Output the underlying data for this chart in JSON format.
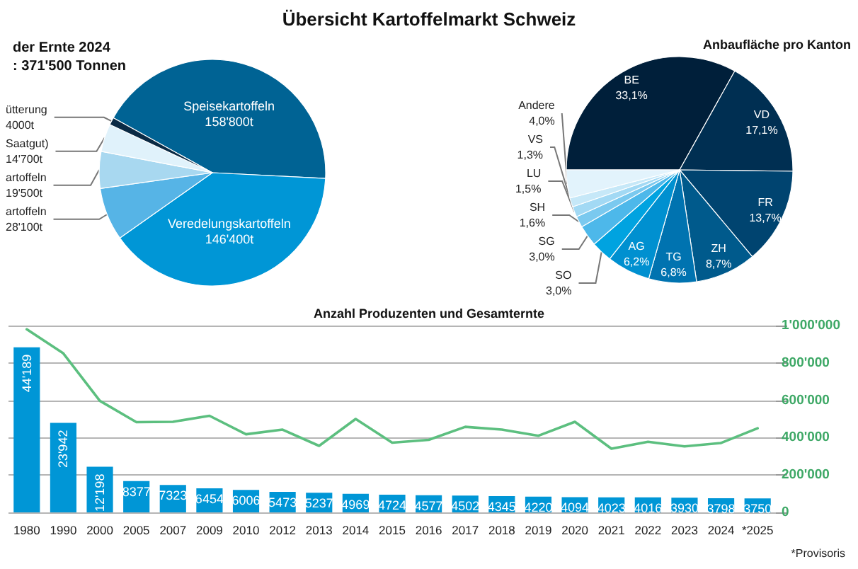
{
  "chart_data": [
    {
      "type": "pie",
      "title": "Übersicht Kartoffelmarkt Schweiz",
      "subtitle": "der Ernte 2024",
      "annotations": [
        ": 371'500 Tonnen"
      ],
      "categories": [
        "Speisekartoffeln",
        "Veredelungskartoffeln",
        "artoffeln",
        "artoffeln",
        "Saatgut)",
        "ütterung"
      ],
      "values": [
        158800,
        146400,
        28100,
        19500,
        14700,
        4000
      ],
      "value_labels": [
        "158'800t",
        "146'400t",
        "28'100t",
        "19'500t",
        "14'700t",
        "4000t"
      ],
      "colors": [
        "#006394",
        "#0096d6",
        "#56b4e6",
        "#a8d8f0",
        "#e0f2fb",
        "#0a2a44"
      ],
      "legend": false
    },
    {
      "type": "pie",
      "title": "Anbaufläche pro Kanton",
      "categories": [
        "BE",
        "VD",
        "FR",
        "ZH",
        "TG",
        "AG",
        "SO",
        "SG",
        "SH",
        "LU",
        "VS",
        "Andere"
      ],
      "values": [
        33.1,
        17.1,
        13.7,
        8.7,
        6.8,
        6.2,
        3.0,
        3.0,
        1.6,
        1.5,
        1.3,
        4.0
      ],
      "value_labels": [
        "33,1%",
        "17,1%",
        "13,7%",
        "8,7%",
        "6,8%",
        "6,2%",
        "3,0%",
        "3,0%",
        "1,6%",
        "1,5%",
        "1,3%",
        "4,0%"
      ],
      "colors": [
        "#001f3a",
        "#002f52",
        "#004470",
        "#005a8c",
        "#0073b0",
        "#0090d0",
        "#00a3e0",
        "#4db8ea",
        "#7ac9ef",
        "#a2d9f4",
        "#c6e8f8",
        "#e2f3fc"
      ],
      "legend": false
    },
    {
      "type": "bar",
      "title": "Anzahl Produzenten und Gesamternte",
      "annotations": [
        "*Provisoris"
      ],
      "categories": [
        "1980",
        "1990",
        "2000",
        "2005",
        "2007",
        "2009",
        "2010",
        "2012",
        "2013",
        "2014",
        "2015",
        "2016",
        "2017",
        "2018",
        "2019",
        "2020",
        "2021",
        "2022",
        "2023",
        "2024",
        "*2025"
      ],
      "series": [
        {
          "type": "bar",
          "color": "#0096d6",
          "values": [
            44189,
            23942,
            12198,
            8377,
            7323,
            6454,
            6006,
            5473,
            5237,
            4969,
            4724,
            4577,
            4502,
            4345,
            4220,
            4094,
            4023,
            4016,
            3930,
            3798,
            3750
          ],
          "value_labels": [
            "44'189",
            "23'942",
            "12'198",
            "8377",
            "7323",
            "6454",
            "6006",
            "5473",
            "5237",
            "4969",
            "4724",
            "4577",
            "4502",
            "4345",
            "4220",
            "4094",
            "4023",
            "4016",
            "3930",
            "3798",
            "3750"
          ]
        },
        {
          "type": "line",
          "axis": "y2",
          "color": "#5cbf7f",
          "values": [
            980000,
            851000,
            597000,
            483000,
            485000,
            517000,
            418000,
            443000,
            356000,
            500000,
            373000,
            388000,
            458000,
            443000,
            410000,
            485000,
            341000,
            378000,
            353000,
            371500,
            450000
          ]
        }
      ],
      "ylim": [
        0,
        50000
      ],
      "y2lim": [
        0,
        1000000
      ],
      "y2ticks": [
        0,
        {
          "value": 200000,
          "label": "200'000"
        },
        {
          "value": 400000,
          "label": "400'000"
        },
        {
          "value": 600000,
          "label": "600'000"
        },
        {
          "value": 800000,
          "label": "800'000"
        },
        {
          "value": 1000000,
          "label": "1'000'000"
        }
      ],
      "grid": "y",
      "legend": false,
      "marker": "none",
      "line_style": "solid"
    }
  ]
}
